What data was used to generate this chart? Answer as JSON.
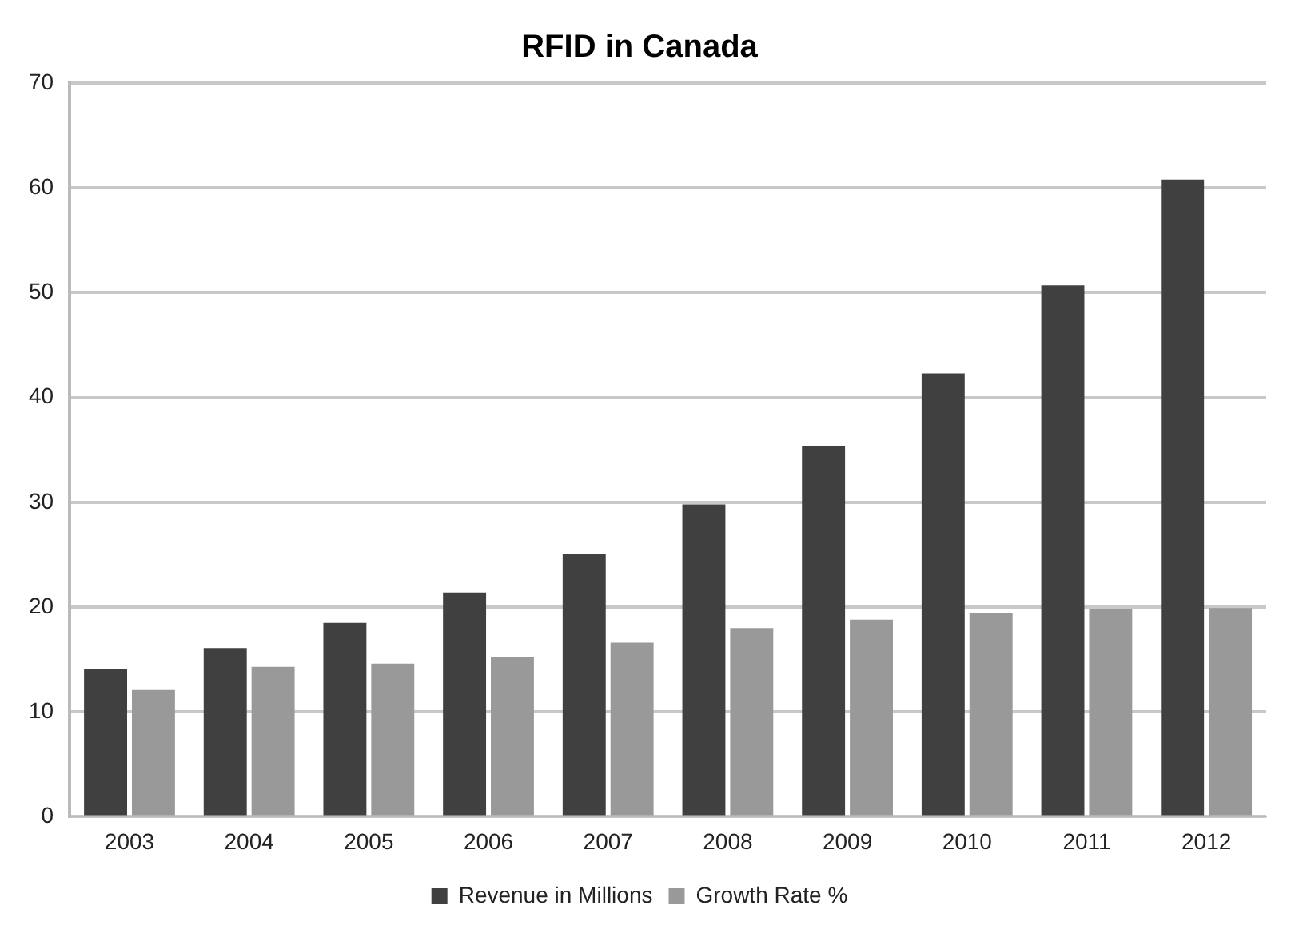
{
  "chart_data": {
    "type": "bar",
    "title": "RFID in Canada",
    "categories": [
      "2003",
      "2004",
      "2005",
      "2006",
      "2007",
      "2008",
      "2009",
      "2010",
      "2011",
      "2012"
    ],
    "series": [
      {
        "name": "Revenue in Millions",
        "color": "#404040",
        "values": [
          14.1,
          16.1,
          18.5,
          21.4,
          25.1,
          29.8,
          35.4,
          42.3,
          50.7,
          60.8
        ]
      },
      {
        "name": "Growth Rate %",
        "color": "#999999",
        "values": [
          12.1,
          14.3,
          14.6,
          15.2,
          16.6,
          18.0,
          18.8,
          19.4,
          19.8,
          19.9
        ]
      }
    ],
    "ylim": [
      0,
      70
    ],
    "yticks": [
      0,
      10,
      20,
      30,
      40,
      50,
      60,
      70
    ],
    "grid": "y",
    "legend": "bottom"
  }
}
